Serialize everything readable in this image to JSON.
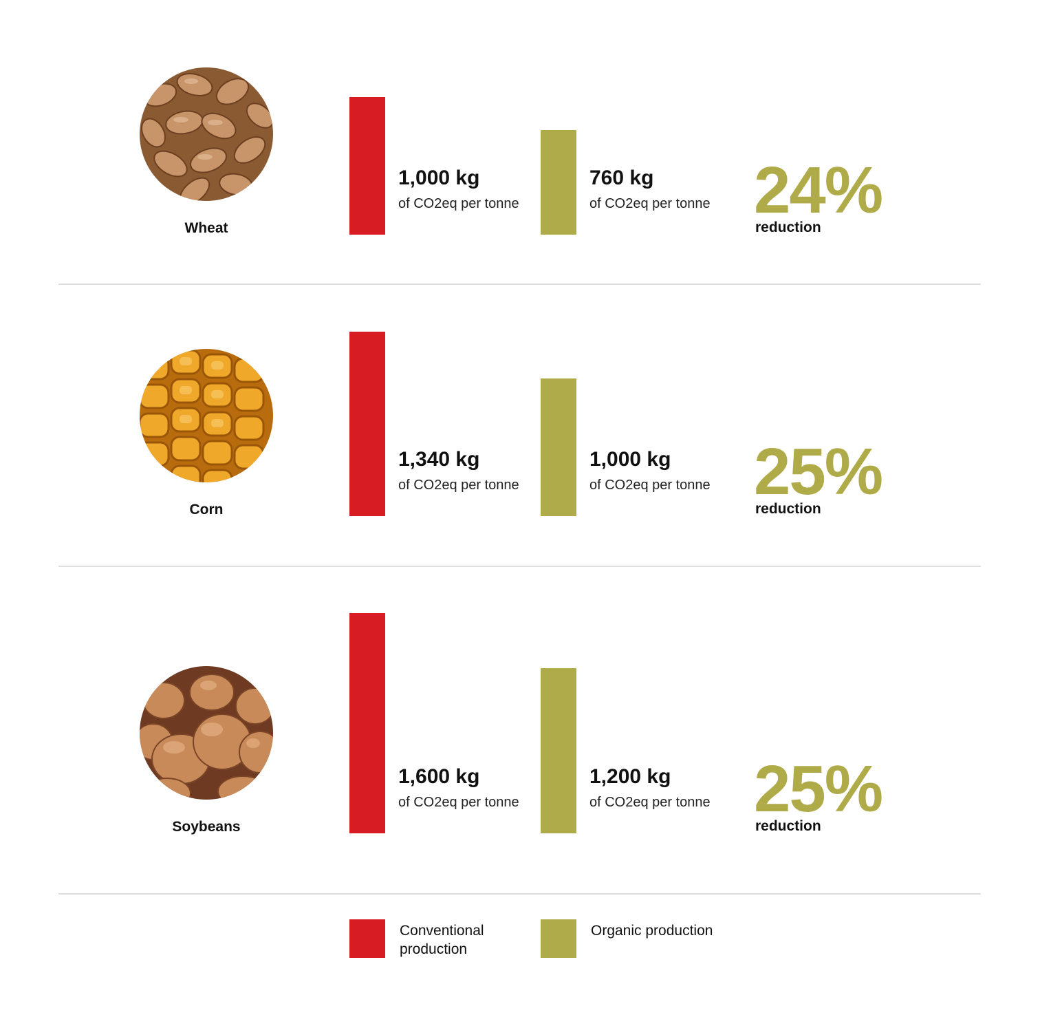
{
  "colors": {
    "conventional": "#d71c23",
    "organic": "#afab48",
    "divider": "#dedede"
  },
  "rows": [
    {
      "crop": "Wheat",
      "image": "wheat-grains-photo",
      "conventional_value": "1,000 kg",
      "organic_value": "760 kg",
      "unit": "of CO2eq per tonne",
      "reduction_pct": "24%",
      "reduction_label": "reduction"
    },
    {
      "crop": "Corn",
      "image": "corn-kernels-photo",
      "conventional_value": "1,340 kg",
      "organic_value": "1,000 kg",
      "unit": "of CO2eq per tonne",
      "reduction_pct": "25%",
      "reduction_label": "reduction"
    },
    {
      "crop": "Soybeans",
      "image": "soybeans-photo",
      "conventional_value": "1,600 kg",
      "organic_value": "1,200 kg",
      "unit": "of CO2eq per tonne",
      "reduction_pct": "25%",
      "reduction_label": "reduction"
    }
  ],
  "legend": {
    "conventional": "Conventional production",
    "organic": "Organic production"
  },
  "chart_data": {
    "type": "bar",
    "categories": [
      "Wheat",
      "Corn",
      "Soybeans"
    ],
    "series": [
      {
        "name": "Conventional production",
        "values": [
          1000,
          1340,
          1600
        ]
      },
      {
        "name": "Organic production",
        "values": [
          760,
          1000,
          1200
        ]
      }
    ],
    "reductions": [
      "24%",
      "25%",
      "25%"
    ],
    "ylabel": "of CO2eq per tonne"
  }
}
